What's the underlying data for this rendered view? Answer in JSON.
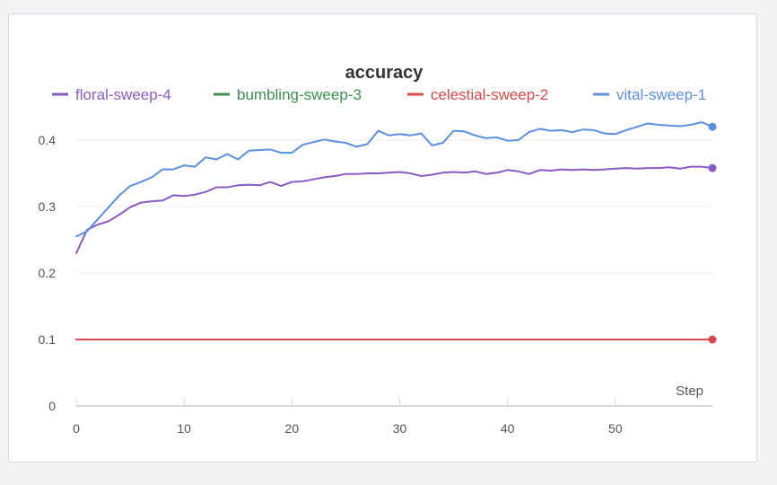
{
  "chart_data": {
    "type": "line",
    "title": "accuracy",
    "xlabel": "Step",
    "ylabel": "",
    "xlim": [
      0,
      59
    ],
    "ylim": [
      0,
      0.45
    ],
    "xticks": [
      0,
      10,
      20,
      30,
      40,
      50
    ],
    "yticks": [
      0,
      0.1,
      0.2,
      0.3,
      0.4
    ],
    "ytick_labels": [
      "0",
      "0.1",
      "0.2",
      "0.3",
      "0.4"
    ],
    "grid": true,
    "legend_position": "top",
    "series": [
      {
        "name": "floral-sweep-4",
        "color": "#8a5cc2",
        "end_marker": true,
        "values": [
          0.23,
          0.265,
          0.273,
          0.278,
          0.288,
          0.299,
          0.306,
          0.308,
          0.309,
          0.317,
          0.316,
          0.318,
          0.322,
          0.329,
          0.329,
          0.332,
          0.333,
          0.332,
          0.337,
          0.331,
          0.337,
          0.338,
          0.341,
          0.344,
          0.346,
          0.349,
          0.349,
          0.35,
          0.35,
          0.351,
          0.352,
          0.35,
          0.346,
          0.348,
          0.351,
          0.352,
          0.351,
          0.353,
          0.349,
          0.351,
          0.355,
          0.353,
          0.349,
          0.355,
          0.354,
          0.356,
          0.355,
          0.356,
          0.355,
          0.356,
          0.357,
          0.358,
          0.357,
          0.358,
          0.358,
          0.359,
          0.357,
          0.36,
          0.36,
          0.358
        ]
      },
      {
        "name": "bumbling-sweep-3",
        "color": "#3a8f4e",
        "end_marker": false,
        "values": [
          0.1,
          0.1,
          0.1,
          0.1,
          0.1,
          0.1,
          0.1,
          0.1,
          0.1,
          0.1,
          0.1,
          0.1,
          0.1,
          0.1,
          0.1,
          0.1,
          0.1,
          0.1,
          0.1,
          0.1,
          0.1,
          0.1,
          0.1,
          0.1,
          0.1,
          0.1,
          0.1,
          0.1,
          0.1,
          0.1,
          0.1,
          0.1,
          0.1,
          0.1,
          0.1,
          0.1,
          0.1,
          0.1,
          0.1,
          0.1,
          0.1,
          0.1,
          0.1,
          0.1,
          0.1,
          0.1,
          0.1,
          0.1,
          0.1,
          0.1,
          0.1,
          0.1,
          0.1,
          0.1,
          0.1,
          0.1,
          0.1,
          0.1,
          0.1,
          0.1
        ]
      },
      {
        "name": "celestial-sweep-2",
        "color": "#d9484c",
        "end_marker": true,
        "values": [
          0.1,
          0.1,
          0.1,
          0.1,
          0.1,
          0.1,
          0.1,
          0.1,
          0.1,
          0.1,
          0.1,
          0.1,
          0.1,
          0.1,
          0.1,
          0.1,
          0.1,
          0.1,
          0.1,
          0.1,
          0.1,
          0.1,
          0.1,
          0.1,
          0.1,
          0.1,
          0.1,
          0.1,
          0.1,
          0.1,
          0.1,
          0.1,
          0.1,
          0.1,
          0.1,
          0.1,
          0.1,
          0.1,
          0.1,
          0.1,
          0.1,
          0.1,
          0.1,
          0.1,
          0.1,
          0.1,
          0.1,
          0.1,
          0.1,
          0.1,
          0.1,
          0.1,
          0.1,
          0.1,
          0.1,
          0.1,
          0.1,
          0.1,
          0.1,
          0.1
        ]
      },
      {
        "name": "vital-sweep-1",
        "color": "#5b8fe0",
        "end_marker": true,
        "values": [
          0.255,
          0.263,
          0.281,
          0.299,
          0.317,
          0.331,
          0.337,
          0.344,
          0.356,
          0.356,
          0.362,
          0.36,
          0.374,
          0.371,
          0.379,
          0.371,
          0.384,
          0.385,
          0.386,
          0.381,
          0.381,
          0.393,
          0.397,
          0.401,
          0.398,
          0.396,
          0.39,
          0.394,
          0.414,
          0.407,
          0.409,
          0.407,
          0.41,
          0.392,
          0.396,
          0.414,
          0.413,
          0.407,
          0.403,
          0.404,
          0.399,
          0.4,
          0.412,
          0.417,
          0.414,
          0.415,
          0.412,
          0.416,
          0.415,
          0.41,
          0.409,
          0.415,
          0.42,
          0.425,
          0.423,
          0.422,
          0.421,
          0.423,
          0.427,
          0.42
        ]
      }
    ]
  }
}
